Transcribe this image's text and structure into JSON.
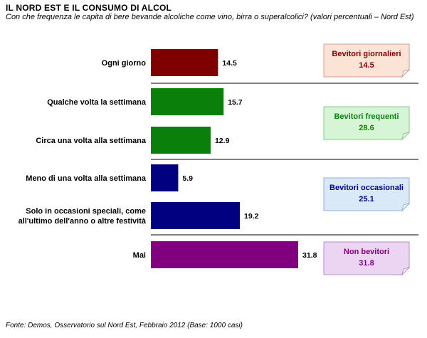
{
  "header": {
    "title": "IL NORD EST E IL CONSUMO DI ALCOL",
    "subtitle": "Con che frequenza le capita di bere bevande alcoliche come vino, birra o superalcolici? (valori percentuali – Nord Est)"
  },
  "footer": {
    "source": "Fonte: Demos, Osservatorio sul Nord Est, Febbraio 2012 (Base: 1000 casi)"
  },
  "chart_data": {
    "type": "bar",
    "orientation": "horizontal",
    "title": "IL NORD EST E IL CONSUMO DI ALCOL",
    "subtitle": "Con che frequenza le capita di bere bevande alcoliche come vino, birra o superalcolici? (valori percentuali – Nord Est)",
    "xlabel": "",
    "ylabel": "",
    "xlim": [
      0,
      40
    ],
    "grid": false,
    "categories": [
      "Ogni giorno",
      "Qualche volta la settimana",
      "Circa una volta alla settimana",
      "Meno di una volta alla settimana",
      "Solo in occasioni speciali, come all'ultimo dell'anno o altre festività",
      "Mai"
    ],
    "category_lines": [
      [
        "Ogni giorno"
      ],
      [
        "Qualche volta la settimana"
      ],
      [
        "Circa una volta alla settimana"
      ],
      [
        "Meno di una volta alla settimana"
      ],
      [
        "Solo in occasioni speciali, come",
        "all'ultimo dell'anno o altre festività"
      ],
      [
        "Mai"
      ]
    ],
    "values": [
      14.5,
      15.7,
      12.9,
      5.9,
      19.2,
      31.8
    ],
    "value_labels": [
      "14.5",
      "15.7",
      "12.9",
      "5.9",
      "19.2",
      "31.8"
    ],
    "bar_colors": [
      "#7f0000",
      "#0a7f0a",
      "#0a7f0a",
      "#000080",
      "#000080",
      "#800080"
    ],
    "groups": [
      {
        "name": "Bevitori giornalieri",
        "value": "14.5",
        "members": [
          0
        ],
        "fill": "#fbe4d5",
        "border": "#d99b8c",
        "text_color": "#7f0000"
      },
      {
        "name": "Bevitori frequenti",
        "value": "28.6",
        "members": [
          1,
          2
        ],
        "fill": "#d5f5d5",
        "border": "#88c888",
        "text_color": "#0a7f0a"
      },
      {
        "name": "Bevitori occasionali",
        "value": "25.1",
        "members": [
          3,
          4
        ],
        "fill": "#d9e9f8",
        "border": "#8fb0d6",
        "text_color": "#000080"
      },
      {
        "name": "Non bevitori",
        "value": "31.8",
        "members": [
          5
        ],
        "fill": "#ecd5f3",
        "border": "#b48fc8",
        "text_color": "#800080"
      }
    ]
  }
}
